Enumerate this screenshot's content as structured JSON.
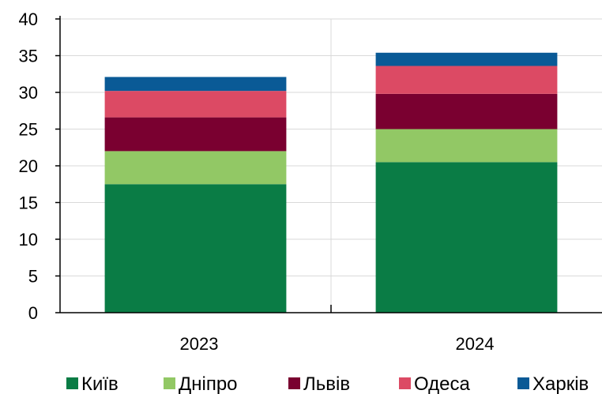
{
  "chart_data": {
    "type": "bar",
    "stacked": true,
    "categories": [
      "2023",
      "2024"
    ],
    "series": [
      {
        "name": "Київ",
        "color": "#0a7c45",
        "values": [
          17.5,
          20.5
        ]
      },
      {
        "name": "Дніпро",
        "color": "#92c865",
        "values": [
          4.5,
          4.5
        ]
      },
      {
        "name": "Львів",
        "color": "#7a0030",
        "values": [
          4.6,
          4.8
        ]
      },
      {
        "name": "Одеса",
        "color": "#dc4a64",
        "values": [
          3.6,
          3.8
        ]
      },
      {
        "name": "Харків",
        "color": "#0a5a96",
        "values": [
          1.9,
          1.8
        ]
      }
    ],
    "ylim": [
      0,
      40
    ],
    "yticks": [
      "0",
      "5",
      "10",
      "15",
      "20",
      "25",
      "30",
      "35",
      "40"
    ],
    "grid": true,
    "legend_position": "bottom"
  }
}
